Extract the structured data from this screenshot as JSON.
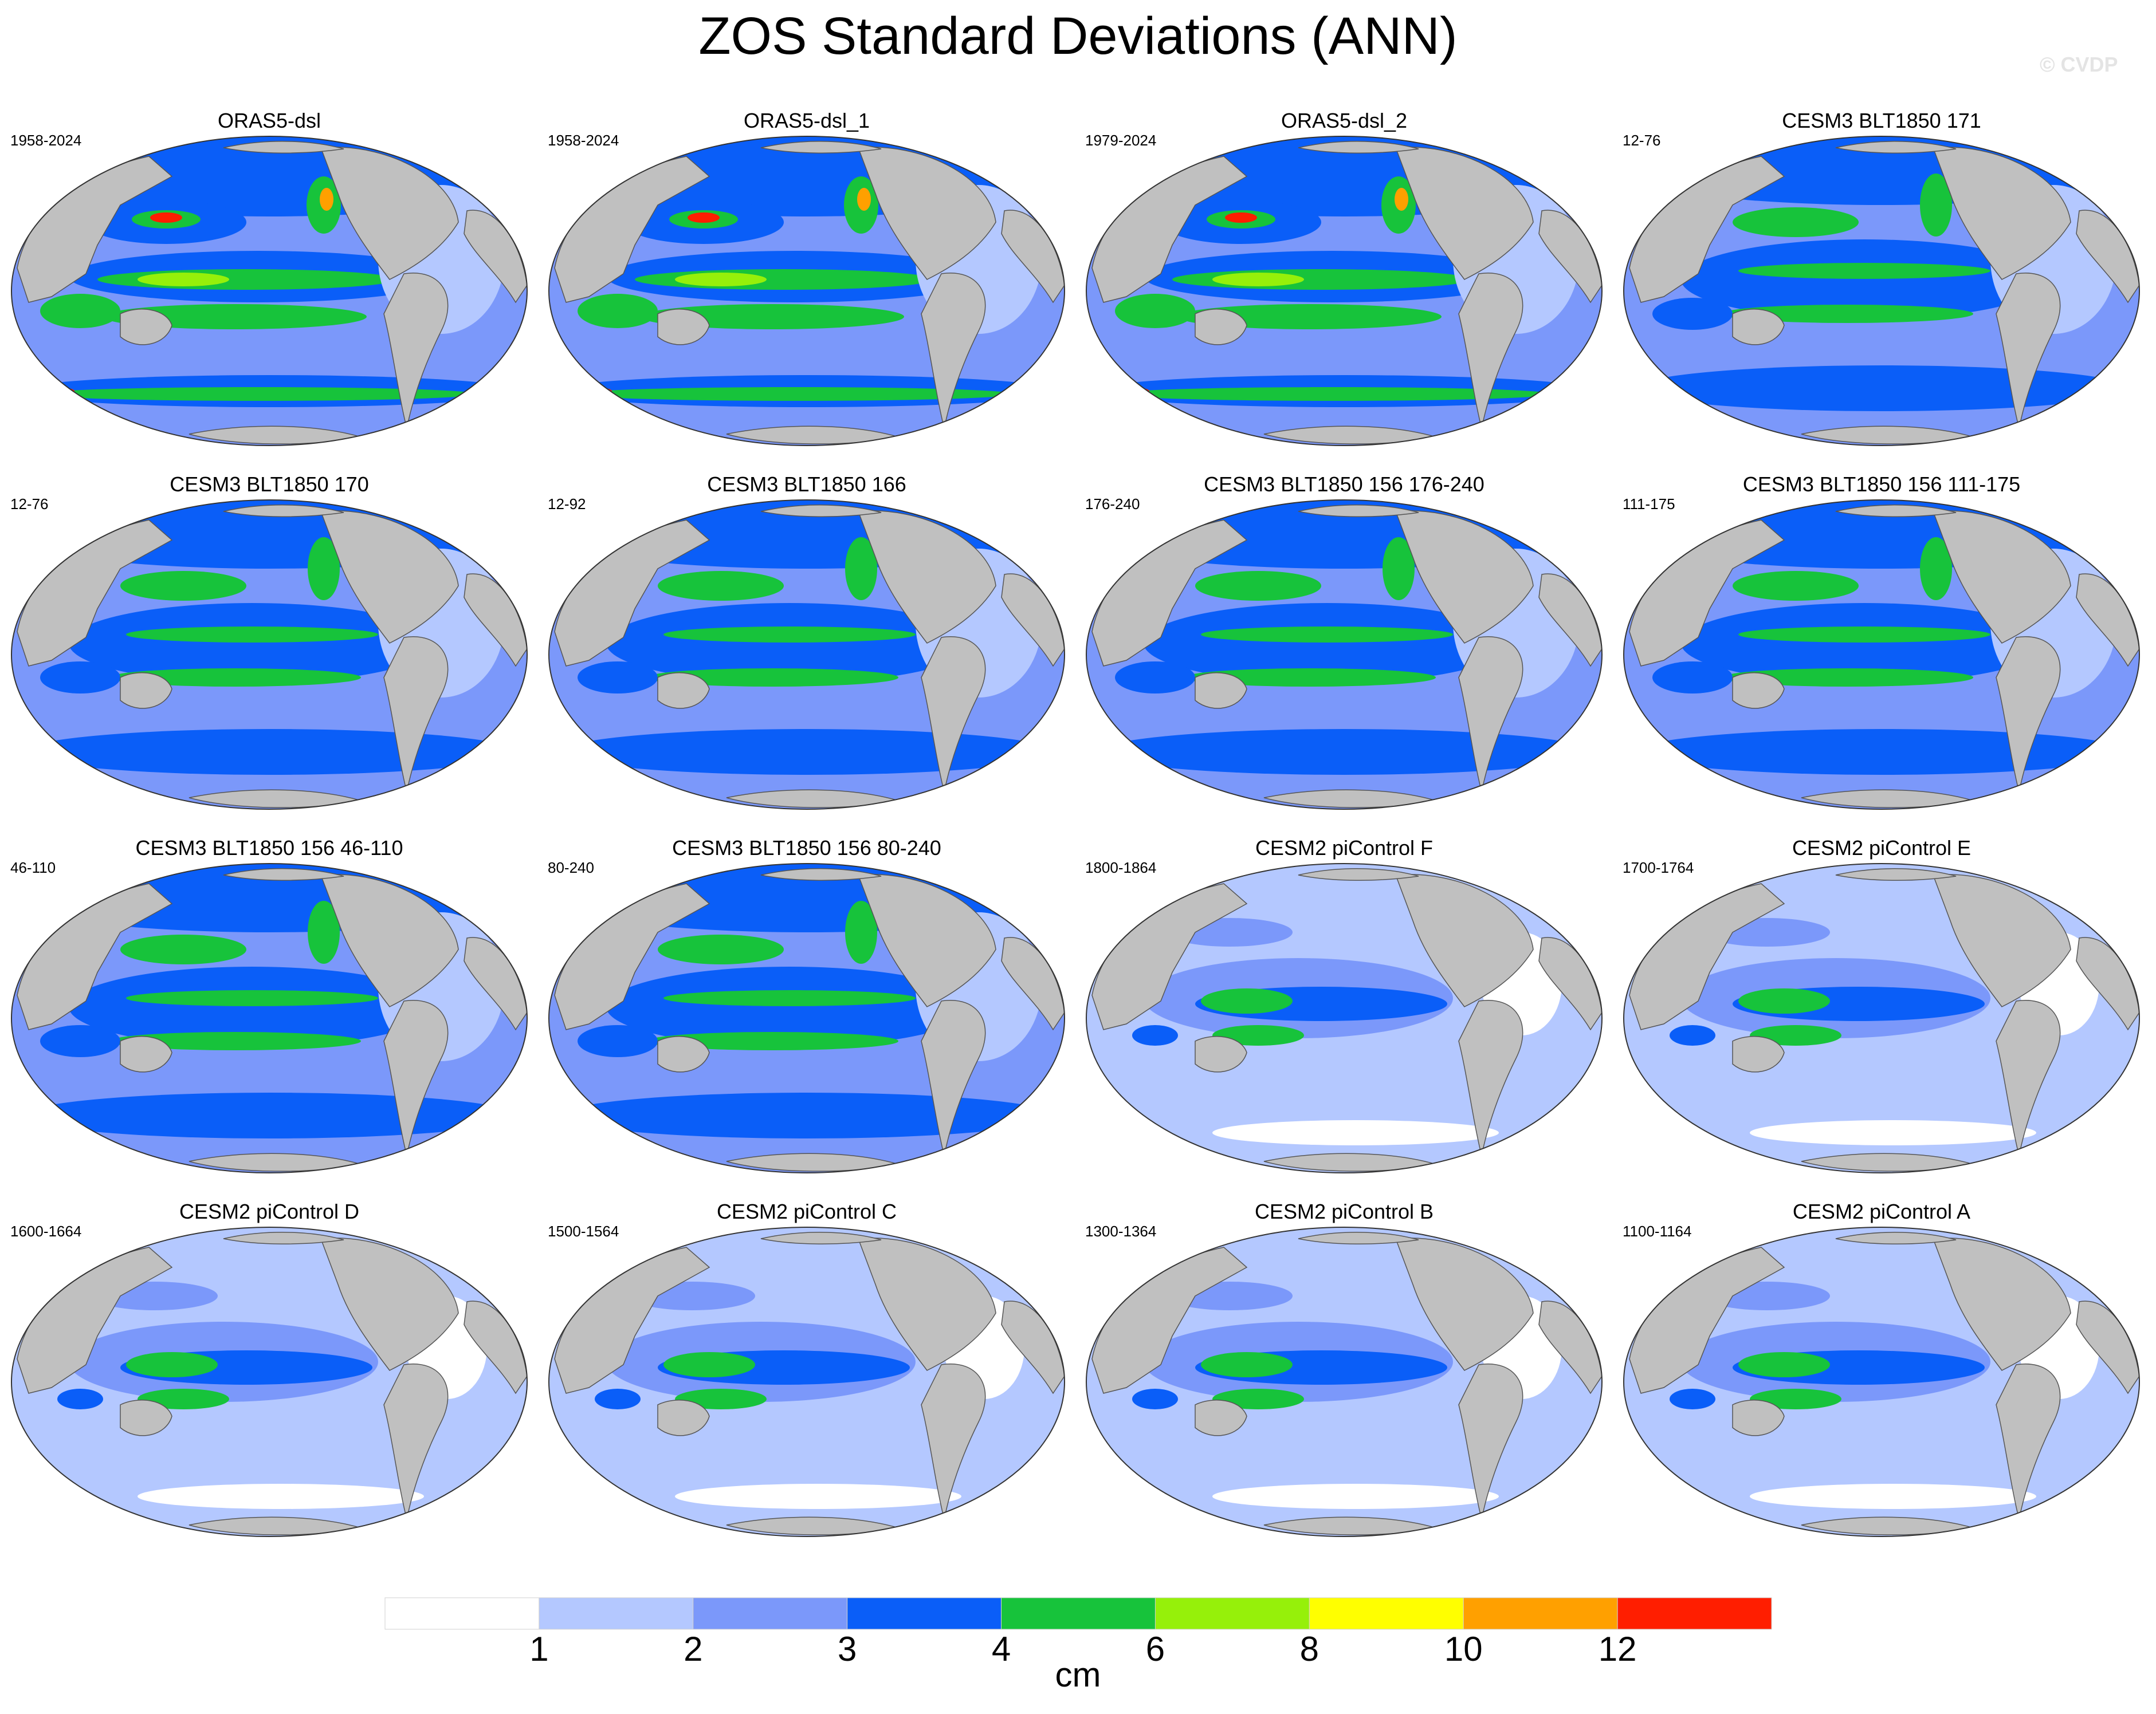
{
  "title": "ZOS Standard Deviations (ANN)",
  "watermark": "© CVDP",
  "panels": [
    {
      "name": "ORAS5-dsl",
      "years": "1958-2024",
      "style": "oras"
    },
    {
      "name": "ORAS5-dsl_1",
      "years": "1958-2024",
      "style": "oras"
    },
    {
      "name": "ORAS5-dsl_2",
      "years": "1979-2024",
      "style": "oras"
    },
    {
      "name": "CESM3 BLT1850 171",
      "years": "12-76",
      "style": "cesm3"
    },
    {
      "name": "CESM3 BLT1850 170",
      "years": "12-76",
      "style": "cesm3"
    },
    {
      "name": "CESM3 BLT1850 166",
      "years": "12-92",
      "style": "cesm3"
    },
    {
      "name": "CESM3 BLT1850 156 176-240",
      "years": "176-240",
      "style": "cesm3"
    },
    {
      "name": "CESM3 BLT1850 156 111-175",
      "years": "111-175",
      "style": "cesm3"
    },
    {
      "name": "CESM3 BLT1850 156 46-110",
      "years": "46-110",
      "style": "cesm3"
    },
    {
      "name": "CESM3 BLT1850 156 80-240",
      "years": "80-240",
      "style": "cesm3"
    },
    {
      "name": "CESM2 piControl F",
      "years": "1800-1864",
      "style": "cesm2"
    },
    {
      "name": "CESM2 piControl E",
      "years": "1700-1764",
      "style": "cesm2"
    },
    {
      "name": "CESM2 piControl D",
      "years": "1600-1664",
      "style": "cesm2"
    },
    {
      "name": "CESM2 piControl C",
      "years": "1500-1564",
      "style": "cesm2"
    },
    {
      "name": "CESM2 piControl B",
      "years": "1300-1364",
      "style": "cesm2"
    },
    {
      "name": "CESM2 piControl A",
      "years": "1100-1164",
      "style": "cesm2"
    }
  ],
  "colorbar": {
    "unit": "cm",
    "tick_labels": [
      "1",
      "2",
      "3",
      "4",
      "6",
      "8",
      "10",
      "12"
    ],
    "colors": [
      "#ffffff",
      "#b4c8ff",
      "#7b98fa",
      "#0a5ef8",
      "#17c33b",
      "#96f00a",
      "#ffff00",
      "#ffa000",
      "#ff1e00"
    ]
  },
  "land_color": "#c0c0c0"
}
